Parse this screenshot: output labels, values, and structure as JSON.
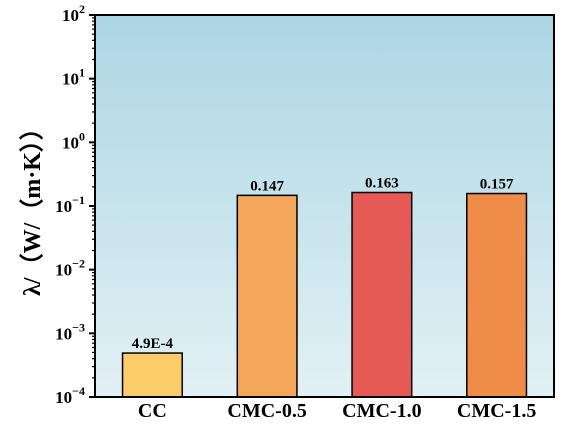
{
  "chart_data": {
    "type": "bar",
    "title": "",
    "xlabel": "",
    "ylabel": "λ/（W/（m·K））",
    "yscale": "log",
    "ylim": [
      0.0001,
      100
    ],
    "grid": false,
    "legend": "none",
    "categories": [
      "CC",
      "CMC-0.5",
      "CMC-1.0",
      "CMC-1.5"
    ],
    "values": [
      0.00049,
      0.147,
      0.163,
      0.157
    ],
    "data_labels": [
      "4.9E-4",
      "0.147",
      "0.163",
      "0.157"
    ],
    "bar_colors": [
      "#fdcc6a",
      "#f4a75a",
      "#e55a55",
      "#ef8c48"
    ],
    "y_tick_labels": [
      {
        "base": "10",
        "exp": "−4"
      },
      {
        "base": "10",
        "exp": "−3"
      },
      {
        "base": "10",
        "exp": "−2"
      },
      {
        "base": "10",
        "exp": "−1"
      },
      {
        "base": "10",
        "exp": "0"
      },
      {
        "base": "10",
        "exp": "1"
      },
      {
        "base": "10",
        "exp": "2"
      }
    ],
    "background_gradient": [
      "#acd6e4",
      "#e2f1f5"
    ]
  }
}
